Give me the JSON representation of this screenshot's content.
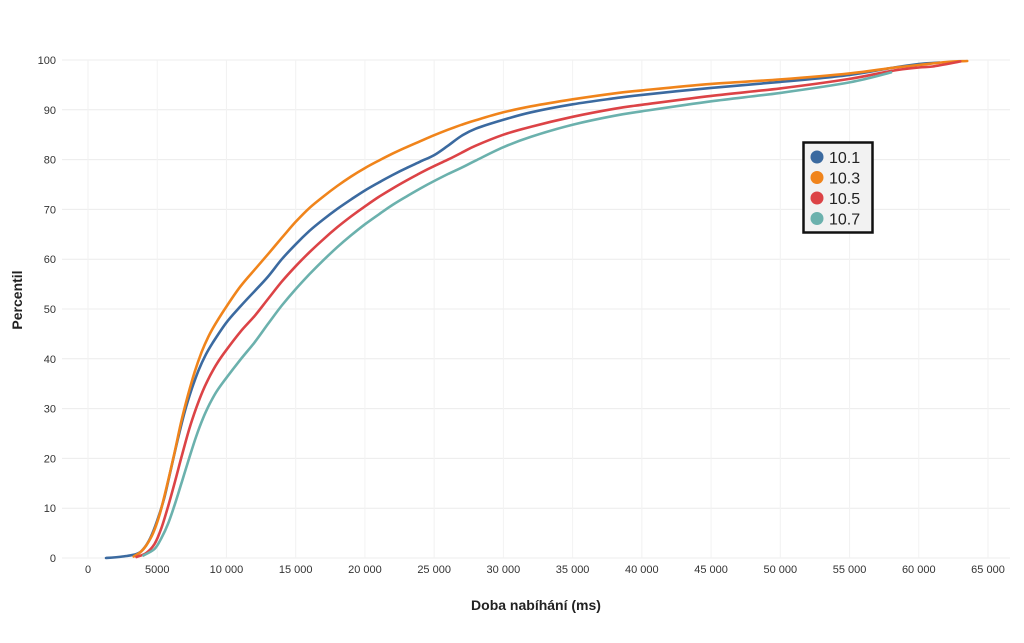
{
  "chart_data": {
    "type": "line",
    "title": "",
    "xlabel": "Doba nabíhání (ms)",
    "ylabel": "Percentil",
    "xlim": [
      0,
      65000
    ],
    "ylim": [
      0,
      100
    ],
    "grid": true,
    "legend_position": "right",
    "x_tick_values": [
      0,
      5000,
      10000,
      15000,
      20000,
      25000,
      30000,
      35000,
      40000,
      45000,
      50000,
      55000,
      60000,
      65000
    ],
    "x_tick_labels": [
      "0",
      "5000",
      "10 000",
      "15 000",
      "20 000",
      "25 000",
      "30 000",
      "35 000",
      "40 000",
      "45 000",
      "50 000",
      "55 000",
      "60 000",
      "65 000"
    ],
    "y_tick_values": [
      0,
      10,
      20,
      30,
      40,
      50,
      60,
      70,
      80,
      90,
      100
    ],
    "y_tick_labels": [
      "0",
      "10",
      "20",
      "30",
      "40",
      "50",
      "60",
      "70",
      "80",
      "90",
      "100"
    ],
    "series": [
      {
        "name": "10.1",
        "color": "#3b6aa0",
        "points": [
          [
            1300,
            0
          ],
          [
            2500,
            0.3
          ],
          [
            3500,
            0.8
          ],
          [
            4000,
            1.8
          ],
          [
            4500,
            4
          ],
          [
            5000,
            7.5
          ],
          [
            5500,
            12
          ],
          [
            6000,
            18
          ],
          [
            6500,
            24
          ],
          [
            7000,
            29.5
          ],
          [
            7500,
            34
          ],
          [
            8000,
            37.8
          ],
          [
            8500,
            40.8
          ],
          [
            9000,
            43.2
          ],
          [
            10000,
            47.3
          ],
          [
            11000,
            50.5
          ],
          [
            12000,
            53.5
          ],
          [
            13000,
            56.5
          ],
          [
            14000,
            60
          ],
          [
            15000,
            63
          ],
          [
            16000,
            65.7
          ],
          [
            17000,
            68
          ],
          [
            18000,
            70.1
          ],
          [
            19000,
            72
          ],
          [
            20000,
            73.8
          ],
          [
            21000,
            75.4
          ],
          [
            22000,
            76.9
          ],
          [
            23000,
            78.3
          ],
          [
            24000,
            79.6
          ],
          [
            25000,
            80.9
          ],
          [
            26000,
            82.8
          ],
          [
            27000,
            84.8
          ],
          [
            28000,
            86.2
          ],
          [
            30000,
            88
          ],
          [
            32000,
            89.5
          ],
          [
            35000,
            91.1
          ],
          [
            38000,
            92.3
          ],
          [
            40000,
            93
          ],
          [
            45000,
            94.4
          ],
          [
            50000,
            95.6
          ],
          [
            55000,
            97
          ],
          [
            58000,
            98.4
          ],
          [
            60000,
            99.2
          ],
          [
            61500,
            99.5
          ]
        ]
      },
      {
        "name": "10.3",
        "color": "#f0841b",
        "points": [
          [
            3300,
            0.3
          ],
          [
            3800,
            1.2
          ],
          [
            4200,
            2.5
          ],
          [
            4700,
            5
          ],
          [
            5200,
            9
          ],
          [
            5700,
            14.5
          ],
          [
            6200,
            20.5
          ],
          [
            6700,
            27
          ],
          [
            7200,
            32.5
          ],
          [
            7700,
            37.3
          ],
          [
            8200,
            41.3
          ],
          [
            8700,
            44.5
          ],
          [
            9200,
            47
          ],
          [
            10000,
            50.5
          ],
          [
            11000,
            54.5
          ],
          [
            12000,
            57.8
          ],
          [
            13000,
            61
          ],
          [
            14000,
            64.3
          ],
          [
            15000,
            67.5
          ],
          [
            16000,
            70.3
          ],
          [
            17000,
            72.6
          ],
          [
            18000,
            74.7
          ],
          [
            19000,
            76.6
          ],
          [
            20000,
            78.3
          ],
          [
            21000,
            79.8
          ],
          [
            22000,
            81.2
          ],
          [
            23000,
            82.5
          ],
          [
            24000,
            83.7
          ],
          [
            25000,
            84.9
          ],
          [
            26000,
            86
          ],
          [
            27000,
            87
          ],
          [
            28000,
            87.9
          ],
          [
            30000,
            89.5
          ],
          [
            32000,
            90.7
          ],
          [
            35000,
            92.1
          ],
          [
            38000,
            93.3
          ],
          [
            40000,
            93.9
          ],
          [
            45000,
            95.2
          ],
          [
            50000,
            96.1
          ],
          [
            55000,
            97.3
          ],
          [
            58000,
            98.4
          ],
          [
            60000,
            99
          ],
          [
            62000,
            99.6
          ],
          [
            63500,
            99.8
          ]
        ]
      },
      {
        "name": "10.5",
        "color": "#dc4346",
        "points": [
          [
            3500,
            0.2
          ],
          [
            4200,
            1
          ],
          [
            4800,
            2.8
          ],
          [
            5300,
            6
          ],
          [
            5800,
            10.5
          ],
          [
            6300,
            15.5
          ],
          [
            6800,
            20.8
          ],
          [
            7300,
            25.8
          ],
          [
            7800,
            30
          ],
          [
            8300,
            33.6
          ],
          [
            8800,
            36.5
          ],
          [
            9300,
            39
          ],
          [
            10000,
            41.8
          ],
          [
            11000,
            45.4
          ],
          [
            12000,
            48.5
          ],
          [
            13000,
            52
          ],
          [
            14000,
            55.5
          ],
          [
            15000,
            58.6
          ],
          [
            16000,
            61.4
          ],
          [
            17000,
            64
          ],
          [
            18000,
            66.4
          ],
          [
            19000,
            68.6
          ],
          [
            20000,
            70.6
          ],
          [
            21000,
            72.5
          ],
          [
            22000,
            74.2
          ],
          [
            23000,
            75.8
          ],
          [
            24000,
            77.3
          ],
          [
            25000,
            78.7
          ],
          [
            26000,
            80
          ],
          [
            27000,
            81.4
          ],
          [
            28000,
            82.8
          ],
          [
            30000,
            85
          ],
          [
            32000,
            86.6
          ],
          [
            35000,
            88.6
          ],
          [
            38000,
            90.2
          ],
          [
            40000,
            91
          ],
          [
            45000,
            92.8
          ],
          [
            50000,
            94.3
          ],
          [
            55000,
            96.2
          ],
          [
            58000,
            97.8
          ],
          [
            60000,
            98.5
          ],
          [
            61000,
            98.7
          ],
          [
            63000,
            99.7
          ]
        ]
      },
      {
        "name": "10.7",
        "color": "#6bb1ad",
        "points": [
          [
            4000,
            0.5
          ],
          [
            4800,
            1.8
          ],
          [
            5300,
            4
          ],
          [
            5800,
            7
          ],
          [
            6300,
            11
          ],
          [
            6800,
            15.5
          ],
          [
            7300,
            20
          ],
          [
            7800,
            24.3
          ],
          [
            8300,
            28
          ],
          [
            8800,
            31
          ],
          [
            9300,
            33.5
          ],
          [
            10000,
            36.2
          ],
          [
            11000,
            39.8
          ],
          [
            12000,
            43.2
          ],
          [
            13000,
            47
          ],
          [
            14000,
            50.7
          ],
          [
            15000,
            54
          ],
          [
            16000,
            57
          ],
          [
            17000,
            59.8
          ],
          [
            18000,
            62.4
          ],
          [
            19000,
            64.8
          ],
          [
            20000,
            67
          ],
          [
            21000,
            69
          ],
          [
            22000,
            70.9
          ],
          [
            23000,
            72.6
          ],
          [
            24000,
            74.2
          ],
          [
            25000,
            75.7
          ],
          [
            26000,
            77.1
          ],
          [
            27000,
            78.4
          ],
          [
            28000,
            79.8
          ],
          [
            30000,
            82.5
          ],
          [
            32000,
            84.6
          ],
          [
            35000,
            87
          ],
          [
            38000,
            88.8
          ],
          [
            40000,
            89.7
          ],
          [
            45000,
            91.7
          ],
          [
            50000,
            93.4
          ],
          [
            55000,
            95.5
          ],
          [
            58000,
            97.5
          ]
        ]
      }
    ]
  }
}
